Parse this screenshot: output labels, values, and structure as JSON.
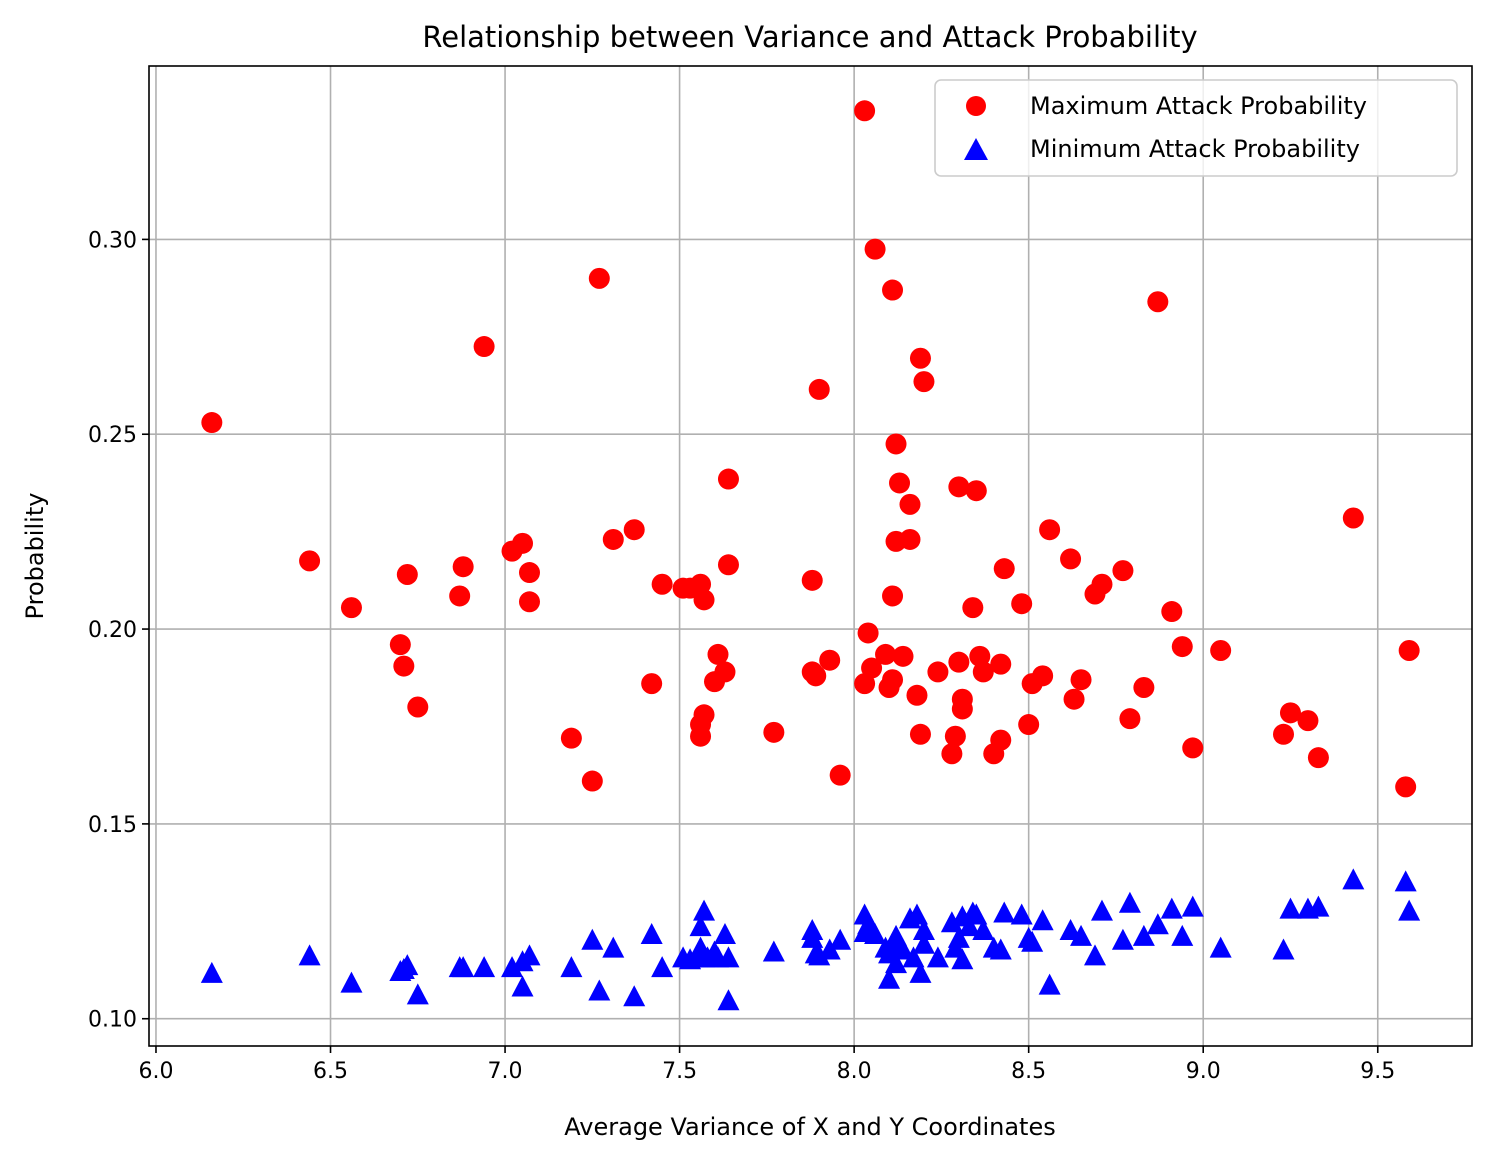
{
  "chart_data": {
    "type": "scatter",
    "title": "Relationship between Variance and Attack Probability",
    "xlabel": "Average Variance of X and Y Coordinates",
    "ylabel": "Probability",
    "xlim": [
      5.98,
      9.77
    ],
    "ylim": [
      0.093,
      0.3445
    ],
    "xticks": [
      6.0,
      6.5,
      7.0,
      7.5,
      8.0,
      8.5,
      9.0,
      9.5
    ],
    "xtick_labels": [
      "6.0",
      "6.5",
      "7.0",
      "7.5",
      "8.0",
      "8.5",
      "9.0",
      "9.5"
    ],
    "yticks": [
      0.1,
      0.15,
      0.2,
      0.25,
      0.3
    ],
    "ytick_labels": [
      "0.10",
      "0.15",
      "0.20",
      "0.25",
      "0.30"
    ],
    "grid": true,
    "legend_position": "top-right",
    "series": [
      {
        "name": "Maximum Attack Probability",
        "marker": "circle",
        "color": "#ff0000",
        "points": [
          [
            6.16,
            0.253
          ],
          [
            6.44,
            0.2175
          ],
          [
            6.56,
            0.2055
          ],
          [
            6.7,
            0.196
          ],
          [
            6.71,
            0.1905
          ],
          [
            6.72,
            0.214
          ],
          [
            6.75,
            0.18
          ],
          [
            6.87,
            0.2085
          ],
          [
            6.88,
            0.216
          ],
          [
            6.94,
            0.2725
          ],
          [
            7.02,
            0.22
          ],
          [
            7.05,
            0.222
          ],
          [
            7.07,
            0.2145
          ],
          [
            7.07,
            0.207
          ],
          [
            7.19,
            0.172
          ],
          [
            7.25,
            0.161
          ],
          [
            7.27,
            0.29
          ],
          [
            7.31,
            0.223
          ],
          [
            7.37,
            0.2255
          ],
          [
            7.42,
            0.186
          ],
          [
            7.45,
            0.2115
          ],
          [
            7.51,
            0.2105
          ],
          [
            7.53,
            0.2105
          ],
          [
            7.56,
            0.2115
          ],
          [
            7.57,
            0.2075
          ],
          [
            7.56,
            0.1755
          ],
          [
            7.57,
            0.178
          ],
          [
            7.56,
            0.1725
          ],
          [
            7.6,
            0.1865
          ],
          [
            7.61,
            0.1935
          ],
          [
            7.63,
            0.189
          ],
          [
            7.64,
            0.2385
          ],
          [
            7.64,
            0.2165
          ],
          [
            7.77,
            0.1735
          ],
          [
            7.88,
            0.2125
          ],
          [
            7.88,
            0.189
          ],
          [
            7.89,
            0.188
          ],
          [
            7.9,
            0.2615
          ],
          [
            7.93,
            0.192
          ],
          [
            7.96,
            0.1625
          ],
          [
            8.03,
            0.333
          ],
          [
            8.04,
            0.199
          ],
          [
            8.03,
            0.186
          ],
          [
            8.05,
            0.19
          ],
          [
            8.06,
            0.2975
          ],
          [
            8.09,
            0.1935
          ],
          [
            8.1,
            0.185
          ],
          [
            8.11,
            0.187
          ],
          [
            8.11,
            0.287
          ],
          [
            8.11,
            0.2085
          ],
          [
            8.12,
            0.2475
          ],
          [
            8.12,
            0.2225
          ],
          [
            8.13,
            0.2375
          ],
          [
            8.14,
            0.193
          ],
          [
            8.16,
            0.232
          ],
          [
            8.16,
            0.223
          ],
          [
            8.18,
            0.183
          ],
          [
            8.19,
            0.173
          ],
          [
            8.19,
            0.2695
          ],
          [
            8.2,
            0.2635
          ],
          [
            8.24,
            0.189
          ],
          [
            8.28,
            0.168
          ],
          [
            8.29,
            0.1725
          ],
          [
            8.3,
            0.1915
          ],
          [
            8.3,
            0.2365
          ],
          [
            8.31,
            0.182
          ],
          [
            8.31,
            0.1795
          ],
          [
            8.34,
            0.2055
          ],
          [
            8.35,
            0.2355
          ],
          [
            8.36,
            0.193
          ],
          [
            8.37,
            0.189
          ],
          [
            8.4,
            0.168
          ],
          [
            8.42,
            0.191
          ],
          [
            8.42,
            0.1715
          ],
          [
            8.43,
            0.2155
          ],
          [
            8.48,
            0.2065
          ],
          [
            8.5,
            0.1755
          ],
          [
            8.51,
            0.186
          ],
          [
            8.54,
            0.188
          ],
          [
            8.56,
            0.2255
          ],
          [
            8.62,
            0.218
          ],
          [
            8.63,
            0.182
          ],
          [
            8.65,
            0.187
          ],
          [
            8.69,
            0.209
          ],
          [
            8.71,
            0.2115
          ],
          [
            8.77,
            0.215
          ],
          [
            8.79,
            0.177
          ],
          [
            8.83,
            0.185
          ],
          [
            8.87,
            0.284
          ],
          [
            8.91,
            0.2045
          ],
          [
            8.94,
            0.1955
          ],
          [
            8.97,
            0.1695
          ],
          [
            9.05,
            0.1945
          ],
          [
            9.23,
            0.173
          ],
          [
            9.25,
            0.1785
          ],
          [
            9.3,
            0.1765
          ],
          [
            9.33,
            0.167
          ],
          [
            9.43,
            0.2285
          ],
          [
            9.58,
            0.1595
          ],
          [
            9.59,
            0.1945
          ]
        ]
      },
      {
        "name": "Minimum Attack Probability",
        "marker": "triangle",
        "color": "#0000ff",
        "points": [
          [
            6.16,
            0.1115
          ],
          [
            6.44,
            0.116
          ],
          [
            6.56,
            0.109
          ],
          [
            6.7,
            0.112
          ],
          [
            6.71,
            0.1125
          ],
          [
            6.72,
            0.1135
          ],
          [
            6.75,
            0.106
          ],
          [
            6.87,
            0.113
          ],
          [
            6.88,
            0.113
          ],
          [
            6.94,
            0.113
          ],
          [
            7.02,
            0.113
          ],
          [
            7.05,
            0.108
          ],
          [
            7.05,
            0.1145
          ],
          [
            7.07,
            0.116
          ],
          [
            7.19,
            0.113
          ],
          [
            7.25,
            0.12
          ],
          [
            7.27,
            0.107
          ],
          [
            7.31,
            0.118
          ],
          [
            7.37,
            0.1055
          ],
          [
            7.42,
            0.1215
          ],
          [
            7.45,
            0.113
          ],
          [
            7.51,
            0.1155
          ],
          [
            7.53,
            0.115
          ],
          [
            7.55,
            0.1155
          ],
          [
            7.56,
            0.1235
          ],
          [
            7.56,
            0.118
          ],
          [
            7.57,
            0.1275
          ],
          [
            7.57,
            0.1155
          ],
          [
            7.58,
            0.1155
          ],
          [
            7.6,
            0.117
          ],
          [
            7.61,
            0.1155
          ],
          [
            7.63,
            0.1215
          ],
          [
            7.64,
            0.1155
          ],
          [
            7.64,
            0.1045
          ],
          [
            7.77,
            0.117
          ],
          [
            7.88,
            0.1225
          ],
          [
            7.88,
            0.1205
          ],
          [
            7.89,
            0.1165
          ],
          [
            7.9,
            0.116
          ],
          [
            7.93,
            0.1175
          ],
          [
            7.96,
            0.12
          ],
          [
            8.03,
            0.1265
          ],
          [
            8.03,
            0.122
          ],
          [
            8.04,
            0.124
          ],
          [
            8.05,
            0.1225
          ],
          [
            8.06,
            0.1215
          ],
          [
            8.09,
            0.118
          ],
          [
            8.1,
            0.11
          ],
          [
            8.1,
            0.1165
          ],
          [
            8.11,
            0.1175
          ],
          [
            8.12,
            0.114
          ],
          [
            8.12,
            0.121
          ],
          [
            8.13,
            0.119
          ],
          [
            8.14,
            0.1175
          ],
          [
            8.16,
            0.1255
          ],
          [
            8.17,
            0.1155
          ],
          [
            8.18,
            0.1265
          ],
          [
            8.19,
            0.1115
          ],
          [
            8.2,
            0.1225
          ],
          [
            8.2,
            0.119
          ],
          [
            8.24,
            0.1155
          ],
          [
            8.28,
            0.1245
          ],
          [
            8.29,
            0.118
          ],
          [
            8.3,
            0.1205
          ],
          [
            8.31,
            0.126
          ],
          [
            8.31,
            0.115
          ],
          [
            8.33,
            0.1235
          ],
          [
            8.34,
            0.127
          ],
          [
            8.35,
            0.1265
          ],
          [
            8.37,
            0.1225
          ],
          [
            8.4,
            0.118
          ],
          [
            8.42,
            0.1175
          ],
          [
            8.43,
            0.127
          ],
          [
            8.48,
            0.1265
          ],
          [
            8.5,
            0.1205
          ],
          [
            8.51,
            0.1195
          ],
          [
            8.54,
            0.125
          ],
          [
            8.56,
            0.1085
          ],
          [
            8.62,
            0.1225
          ],
          [
            8.65,
            0.121
          ],
          [
            8.69,
            0.116
          ],
          [
            8.71,
            0.1275
          ],
          [
            8.77,
            0.12
          ],
          [
            8.79,
            0.1295
          ],
          [
            8.83,
            0.121
          ],
          [
            8.87,
            0.124
          ],
          [
            8.91,
            0.128
          ],
          [
            8.94,
            0.121
          ],
          [
            8.97,
            0.1285
          ],
          [
            9.05,
            0.118
          ],
          [
            9.23,
            0.1175
          ],
          [
            9.25,
            0.128
          ],
          [
            9.3,
            0.128
          ],
          [
            9.33,
            0.1285
          ],
          [
            9.43,
            0.1355
          ],
          [
            9.58,
            0.135
          ],
          [
            9.59,
            0.1275
          ]
        ]
      }
    ]
  }
}
